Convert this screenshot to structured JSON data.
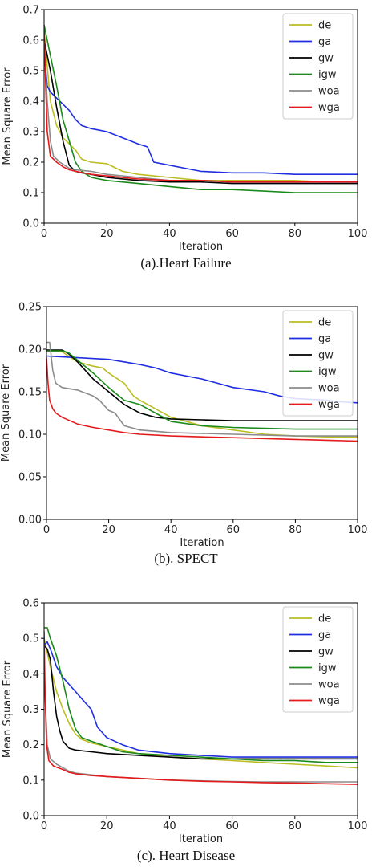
{
  "colors": {
    "de": "#bcbd22",
    "ga": "#1f2ee0",
    "gw": "#000000",
    "igw": "#1a8a1a",
    "woa": "#8c8c8c",
    "wga": "#e41a1c"
  },
  "chart_data": [
    {
      "type": "line",
      "caption": "(a).Heart Failure",
      "xlabel": "Iteration",
      "ylabel": "Mean Square Error",
      "xlim": [
        0,
        100
      ],
      "ylim": [
        0,
        0.7
      ],
      "xticks": [
        "0",
        "20",
        "40",
        "60",
        "80",
        "100"
      ],
      "yticks": [
        "0.0",
        "0.1",
        "0.2",
        "0.3",
        "0.4",
        "0.5",
        "0.6",
        "0.7"
      ],
      "legend_position": "top-right",
      "series": [
        {
          "name": "de",
          "x": [
            0,
            2,
            4,
            6,
            8,
            10,
            12,
            15,
            20,
            25,
            30,
            40,
            50,
            60,
            70,
            80,
            90,
            100
          ],
          "y": [
            0.63,
            0.4,
            0.32,
            0.28,
            0.26,
            0.24,
            0.21,
            0.2,
            0.195,
            0.17,
            0.16,
            0.15,
            0.14,
            0.14,
            0.14,
            0.14,
            0.135,
            0.135
          ]
        },
        {
          "name": "ga",
          "x": [
            0,
            1,
            2,
            4,
            6,
            8,
            10,
            12,
            15,
            20,
            25,
            30,
            33,
            35,
            40,
            45,
            50,
            60,
            70,
            80,
            90,
            100
          ],
          "y": [
            0.56,
            0.45,
            0.43,
            0.41,
            0.39,
            0.37,
            0.34,
            0.32,
            0.31,
            0.3,
            0.28,
            0.26,
            0.25,
            0.2,
            0.19,
            0.18,
            0.17,
            0.165,
            0.165,
            0.16,
            0.16,
            0.16
          ]
        },
        {
          "name": "gw",
          "x": [
            0,
            1,
            2,
            4,
            6,
            8,
            10,
            12,
            15,
            20,
            30,
            40,
            50,
            60,
            70,
            80,
            90,
            100
          ],
          "y": [
            0.6,
            0.55,
            0.5,
            0.38,
            0.27,
            0.19,
            0.17,
            0.165,
            0.16,
            0.15,
            0.14,
            0.135,
            0.135,
            0.13,
            0.13,
            0.13,
            0.13,
            0.13
          ]
        },
        {
          "name": "igw",
          "x": [
            0,
            1,
            2,
            4,
            6,
            8,
            10,
            12,
            15,
            20,
            30,
            40,
            50,
            60,
            70,
            80,
            90,
            100
          ],
          "y": [
            0.65,
            0.6,
            0.55,
            0.45,
            0.34,
            0.27,
            0.2,
            0.17,
            0.15,
            0.14,
            0.13,
            0.12,
            0.11,
            0.11,
            0.105,
            0.1,
            0.1,
            0.1
          ]
        },
        {
          "name": "woa",
          "x": [
            0,
            1,
            2,
            3,
            5,
            8,
            10,
            15,
            20,
            30,
            40,
            50,
            60,
            70,
            80,
            90,
            100
          ],
          "y": [
            0.6,
            0.4,
            0.27,
            0.22,
            0.2,
            0.18,
            0.175,
            0.17,
            0.16,
            0.15,
            0.14,
            0.14,
            0.135,
            0.135,
            0.135,
            0.135,
            0.135
          ]
        },
        {
          "name": "wga",
          "x": [
            0,
            0.5,
            1,
            2,
            4,
            6,
            8,
            10,
            15,
            20,
            30,
            40,
            50,
            60,
            70,
            80,
            90,
            100
          ],
          "y": [
            0.65,
            0.45,
            0.3,
            0.22,
            0.2,
            0.185,
            0.175,
            0.17,
            0.16,
            0.155,
            0.145,
            0.14,
            0.14,
            0.135,
            0.135,
            0.135,
            0.135,
            0.135
          ]
        }
      ]
    },
    {
      "type": "line",
      "caption": "(b). SPECT",
      "xlabel": "Iteration",
      "ylabel": "Mean Square Error",
      "xlim": [
        0,
        100
      ],
      "ylim": [
        0,
        0.25
      ],
      "xticks": [
        "0",
        "20",
        "40",
        "60",
        "80",
        "100"
      ],
      "yticks": [
        "0.00",
        "0.05",
        "0.10",
        "0.15",
        "0.20",
        "0.25"
      ],
      "legend_position": "top-right",
      "series": [
        {
          "name": "de",
          "x": [
            0,
            5,
            10,
            15,
            18,
            20,
            25,
            28,
            30,
            35,
            40,
            50,
            60,
            70,
            80,
            90,
            100
          ],
          "y": [
            0.198,
            0.197,
            0.185,
            0.18,
            0.178,
            0.172,
            0.16,
            0.145,
            0.14,
            0.13,
            0.12,
            0.11,
            0.105,
            0.1,
            0.098,
            0.097,
            0.097
          ]
        },
        {
          "name": "ga",
          "x": [
            0,
            10,
            20,
            30,
            35,
            40,
            50,
            55,
            60,
            70,
            75,
            80,
            90,
            95,
            100
          ],
          "y": [
            0.192,
            0.19,
            0.188,
            0.182,
            0.178,
            0.172,
            0.165,
            0.16,
            0.155,
            0.15,
            0.145,
            0.142,
            0.14,
            0.138,
            0.137
          ]
        },
        {
          "name": "gw",
          "x": [
            0,
            5,
            7,
            10,
            15,
            20,
            25,
            30,
            35,
            40,
            50,
            60,
            70,
            80,
            90,
            100
          ],
          "y": [
            0.199,
            0.199,
            0.195,
            0.185,
            0.165,
            0.15,
            0.135,
            0.125,
            0.12,
            0.118,
            0.117,
            0.116,
            0.116,
            0.116,
            0.116,
            0.116
          ]
        },
        {
          "name": "igw",
          "x": [
            0,
            5,
            7,
            10,
            15,
            20,
            25,
            30,
            35,
            40,
            50,
            60,
            70,
            80,
            90,
            100
          ],
          "y": [
            0.198,
            0.198,
            0.196,
            0.187,
            0.172,
            0.155,
            0.14,
            0.135,
            0.125,
            0.115,
            0.11,
            0.108,
            0.107,
            0.106,
            0.106,
            0.106
          ]
        },
        {
          "name": "woa",
          "x": [
            0,
            1,
            2,
            3,
            5,
            10,
            15,
            17,
            20,
            22,
            25,
            30,
            40,
            60,
            80,
            100
          ],
          "y": [
            0.208,
            0.208,
            0.175,
            0.16,
            0.155,
            0.152,
            0.145,
            0.14,
            0.128,
            0.125,
            0.11,
            0.105,
            0.102,
            0.1,
            0.098,
            0.098
          ]
        },
        {
          "name": "wga",
          "x": [
            0,
            0.5,
            1,
            2,
            3,
            5,
            10,
            15,
            20,
            25,
            30,
            40,
            50,
            60,
            70,
            80,
            90,
            100
          ],
          "y": [
            0.19,
            0.16,
            0.14,
            0.13,
            0.125,
            0.12,
            0.112,
            0.108,
            0.105,
            0.102,
            0.1,
            0.098,
            0.097,
            0.096,
            0.095,
            0.094,
            0.093,
            0.092
          ]
        }
      ]
    },
    {
      "type": "line",
      "caption": "(c). Heart Disease",
      "xlabel": "Iteration",
      "ylabel": "Mean Square Error",
      "xlim": [
        0,
        100
      ],
      "ylim": [
        0,
        0.6
      ],
      "xticks": [
        "0",
        "20",
        "40",
        "60",
        "80",
        "100"
      ],
      "yticks": [
        "0.0",
        "0.1",
        "0.2",
        "0.3",
        "0.4",
        "0.5",
        "0.6"
      ],
      "legend_position": "top-right",
      "series": [
        {
          "name": "de",
          "x": [
            0,
            2,
            4,
            6,
            8,
            10,
            12,
            15,
            20,
            25,
            30,
            40,
            50,
            60,
            70,
            80,
            90,
            100
          ],
          "y": [
            0.5,
            0.42,
            0.35,
            0.3,
            0.26,
            0.23,
            0.215,
            0.205,
            0.195,
            0.185,
            0.175,
            0.165,
            0.16,
            0.155,
            0.15,
            0.145,
            0.14,
            0.135
          ]
        },
        {
          "name": "ga",
          "x": [
            0,
            1,
            2,
            4,
            6,
            8,
            10,
            12,
            15,
            17,
            20,
            25,
            30,
            40,
            50,
            60,
            70,
            80,
            90,
            100
          ],
          "y": [
            0.48,
            0.49,
            0.47,
            0.42,
            0.39,
            0.37,
            0.35,
            0.33,
            0.3,
            0.25,
            0.22,
            0.2,
            0.185,
            0.175,
            0.17,
            0.165,
            0.165,
            0.165,
            0.165,
            0.165
          ]
        },
        {
          "name": "gw",
          "x": [
            0,
            1,
            2,
            3,
            4,
            5,
            6,
            8,
            10,
            15,
            20,
            30,
            40,
            50,
            60,
            70,
            80,
            90,
            100
          ],
          "y": [
            0.48,
            0.47,
            0.44,
            0.35,
            0.28,
            0.24,
            0.21,
            0.19,
            0.185,
            0.18,
            0.175,
            0.17,
            0.165,
            0.16,
            0.16,
            0.16,
            0.16,
            0.16,
            0.16
          ]
        },
        {
          "name": "igw",
          "x": [
            0,
            1,
            2,
            4,
            6,
            8,
            10,
            12,
            15,
            20,
            25,
            30,
            40,
            50,
            60,
            70,
            80,
            90,
            100
          ],
          "y": [
            0.53,
            0.53,
            0.5,
            0.45,
            0.38,
            0.3,
            0.245,
            0.22,
            0.21,
            0.195,
            0.18,
            0.175,
            0.17,
            0.165,
            0.16,
            0.155,
            0.155,
            0.15,
            0.15
          ]
        },
        {
          "name": "woa",
          "x": [
            0,
            0.5,
            1,
            2,
            4,
            6,
            8,
            10,
            15,
            20,
            30,
            40,
            50,
            60,
            70,
            80,
            90,
            100
          ],
          "y": [
            0.42,
            0.3,
            0.2,
            0.16,
            0.145,
            0.135,
            0.125,
            0.12,
            0.115,
            0.11,
            0.105,
            0.1,
            0.098,
            0.096,
            0.095,
            0.095,
            0.095,
            0.095
          ]
        },
        {
          "name": "wga",
          "x": [
            0,
            0.3,
            0.8,
            1.5,
            3,
            6,
            8,
            10,
            15,
            20,
            30,
            40,
            50,
            60,
            70,
            80,
            90,
            100
          ],
          "y": [
            0.52,
            0.35,
            0.2,
            0.155,
            0.14,
            0.13,
            0.122,
            0.118,
            0.113,
            0.11,
            0.105,
            0.1,
            0.097,
            0.095,
            0.093,
            0.092,
            0.09,
            0.088
          ]
        }
      ]
    }
  ]
}
